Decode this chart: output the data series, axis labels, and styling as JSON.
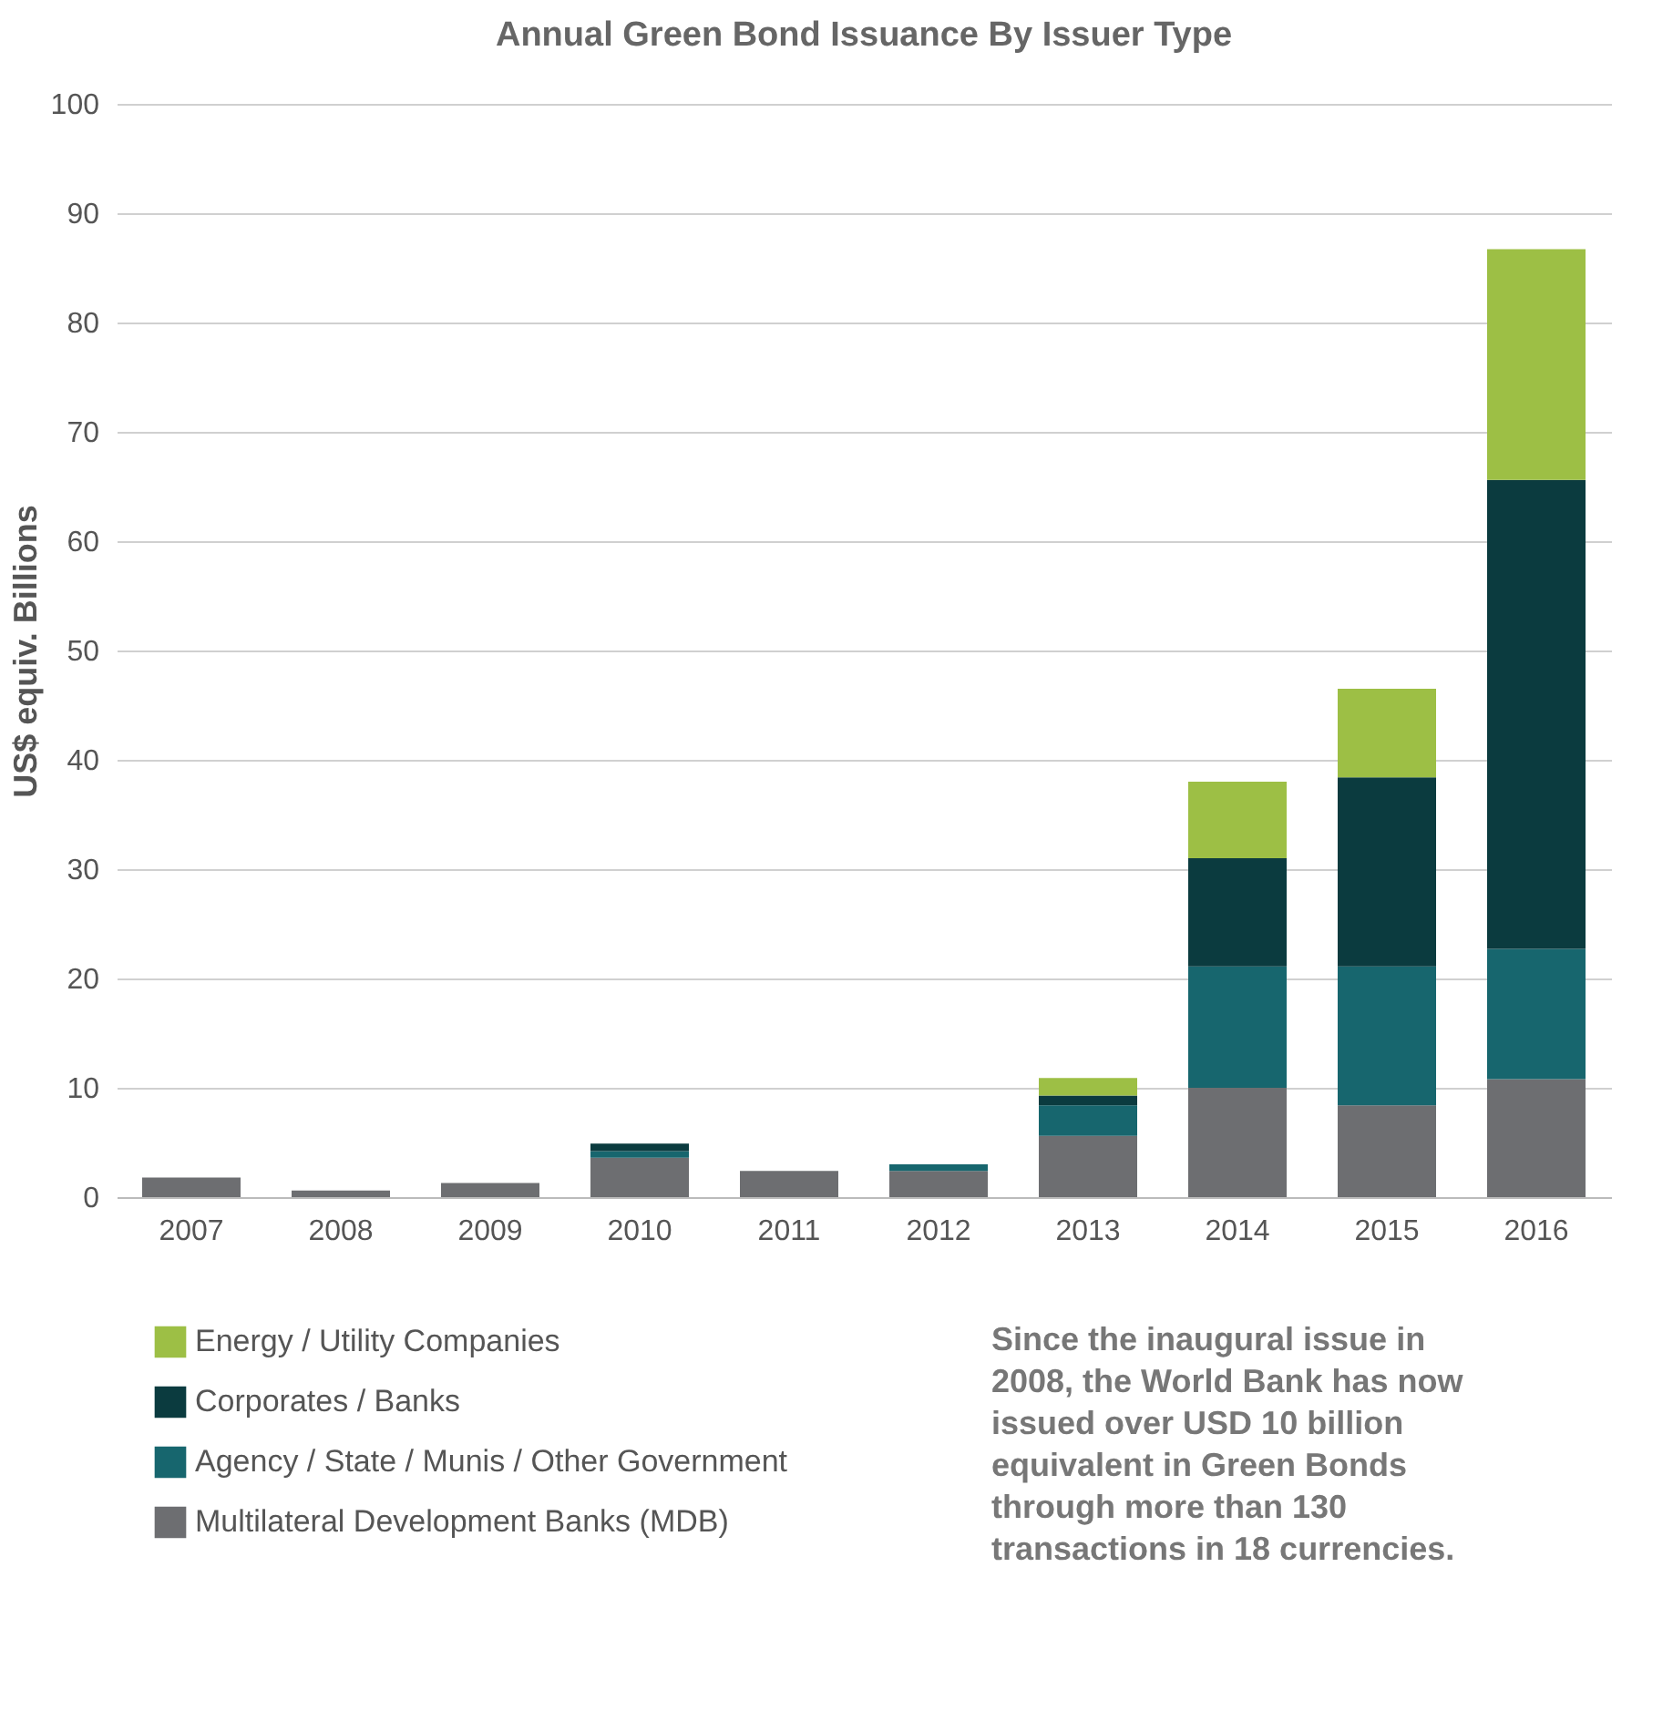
{
  "chart_data": {
    "type": "bar",
    "stacked": true,
    "title": "Annual Green Bond Issuance By Issuer Type",
    "ylabel": "US$ equiv. Billions",
    "categories": [
      "2007",
      "2008",
      "2009",
      "2010",
      "2011",
      "2012",
      "2013",
      "2014",
      "2015",
      "2016"
    ],
    "series": [
      {
        "name": "Multilateral Development Banks (MDB)",
        "color": "#6d6e71",
        "values": [
          1.8,
          0.6,
          1.3,
          3.6,
          2.4,
          2.4,
          5.6,
          10.0,
          8.4,
          10.8
        ]
      },
      {
        "name": "Agency / State / Munis / Other Government",
        "color": "#17666e",
        "values": [
          null,
          null,
          null,
          0.6,
          null,
          0.6,
          2.8,
          11.1,
          12.7,
          11.9
        ]
      },
      {
        "name": "Corporates / Banks",
        "color": "#0b3b3f",
        "values": [
          null,
          null,
          null,
          0.7,
          null,
          null,
          0.9,
          9.9,
          17.3,
          42.9
        ]
      },
      {
        "name": "Energy / Utility Companies",
        "color": "#9dbf45",
        "values": [
          null,
          null,
          null,
          null,
          null,
          null,
          1.6,
          7.0,
          8.1,
          21.1
        ]
      }
    ],
    "ylim": [
      0,
      100
    ],
    "yticks": [
      0,
      10,
      20,
      30,
      40,
      50,
      60,
      70,
      80,
      90,
      100
    ],
    "grid": "y",
    "legend": "bottom",
    "annotations": [
      "Since the inaugural issue in 2008, the World Bank has now issued over USD 10 billion equivalent in Green Bonds through more than 130 transactions in 18 currencies."
    ]
  }
}
